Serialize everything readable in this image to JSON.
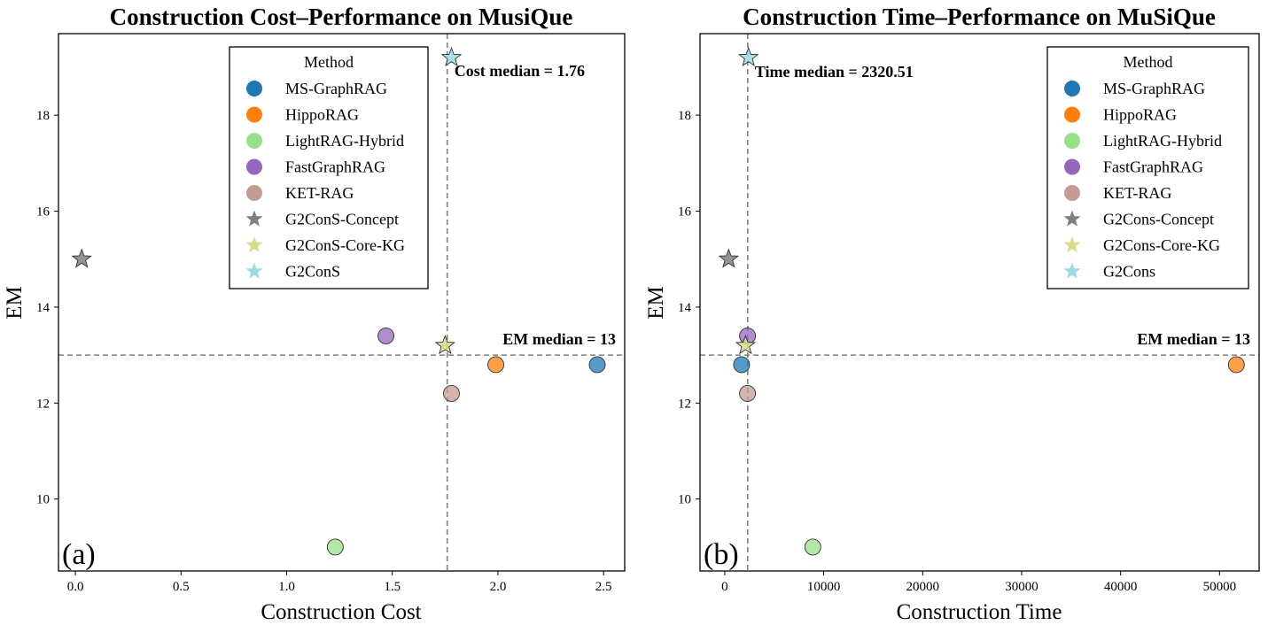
{
  "chart_data": [
    {
      "type": "scatter",
      "title": "Construction Cost–Performance on MusiQue",
      "xlabel": "Construction Cost",
      "ylabel": "EM",
      "panel_label": "(a)",
      "xlim": [
        -0.08,
        2.6
      ],
      "ylim": [
        8.5,
        19.7
      ],
      "xticks": [
        0.0,
        0.5,
        1.0,
        1.5,
        2.0,
        2.5
      ],
      "xtick_labels": [
        "0.0",
        "0.5",
        "1.0",
        "1.5",
        "2.0",
        "2.5"
      ],
      "yticks": [
        10,
        12,
        14,
        16,
        18
      ],
      "ytick_labels": [
        "10",
        "12",
        "14",
        "16",
        "18"
      ],
      "median_x": 1.76,
      "median_y": 13,
      "median_x_label": "Cost median = 1.76",
      "median_y_label": "EM median = 13",
      "legend_title": "Method",
      "legend_position": "upper-center",
      "series": [
        {
          "name": "MS-GraphRAG",
          "marker": "circle",
          "color": "#1f77b4",
          "x": 2.47,
          "y": 12.8
        },
        {
          "name": "HippoRAG",
          "marker": "circle",
          "color": "#ff7f0e",
          "x": 1.99,
          "y": 12.8
        },
        {
          "name": "LightRAG-Hybrid",
          "marker": "circle",
          "color": "#98df8a",
          "x": 1.23,
          "y": 9.0
        },
        {
          "name": "FastGraphRAG",
          "marker": "circle",
          "color": "#9467bd",
          "x": 1.47,
          "y": 13.4
        },
        {
          "name": "KET-RAG",
          "marker": "circle",
          "color": "#c49c94",
          "x": 1.78,
          "y": 12.2
        },
        {
          "name": "G2ConS-Concept",
          "marker": "star",
          "color": "#7f7f7f",
          "x": 0.03,
          "y": 15.0
        },
        {
          "name": "G2ConS-Core-KG",
          "marker": "star",
          "color": "#dbdb8d",
          "x": 1.75,
          "y": 13.2
        },
        {
          "name": "G2ConS",
          "marker": "star",
          "color": "#9edae5",
          "x": 1.78,
          "y": 19.2
        }
      ]
    },
    {
      "type": "scatter",
      "title": "Construction Time–Performance on MuSiQue",
      "xlabel": "Construction Time",
      "ylabel": "EM",
      "panel_label": "(b)",
      "xlim": [
        -2500,
        54000
      ],
      "ylim": [
        8.5,
        19.7
      ],
      "xticks": [
        0,
        10000,
        20000,
        30000,
        40000,
        50000
      ],
      "xtick_labels": [
        "0",
        "10000",
        "20000",
        "30000",
        "40000",
        "50000"
      ],
      "yticks": [
        10,
        12,
        14,
        16,
        18
      ],
      "ytick_labels": [
        "10",
        "12",
        "14",
        "16",
        "18"
      ],
      "median_x": 2320.51,
      "median_y": 13,
      "median_x_label": "Time median = 2320.51",
      "median_y_label": "EM median = 13",
      "legend_title": "Method",
      "legend_position": "upper-right",
      "series": [
        {
          "name": "MS-GraphRAG",
          "marker": "circle",
          "color": "#1f77b4",
          "x": 1700,
          "y": 12.8
        },
        {
          "name": "HippoRAG",
          "marker": "circle",
          "color": "#ff7f0e",
          "x": 51700,
          "y": 12.8
        },
        {
          "name": "LightRAG-Hybrid",
          "marker": "circle",
          "color": "#98df8a",
          "x": 8900,
          "y": 9.0
        },
        {
          "name": "FastGraphRAG",
          "marker": "circle",
          "color": "#9467bd",
          "x": 2300,
          "y": 13.4
        },
        {
          "name": "KET-RAG",
          "marker": "circle",
          "color": "#c49c94",
          "x": 2300,
          "y": 12.2
        },
        {
          "name": "G2Cons-Concept",
          "marker": "star",
          "color": "#7f7f7f",
          "x": 400,
          "y": 15.0
        },
        {
          "name": "G2Cons-Core-KG",
          "marker": "star",
          "color": "#dbdb8d",
          "x": 2100,
          "y": 13.2
        },
        {
          "name": "G2Cons",
          "marker": "star",
          "color": "#9edae5",
          "x": 2400,
          "y": 19.2
        }
      ]
    }
  ]
}
